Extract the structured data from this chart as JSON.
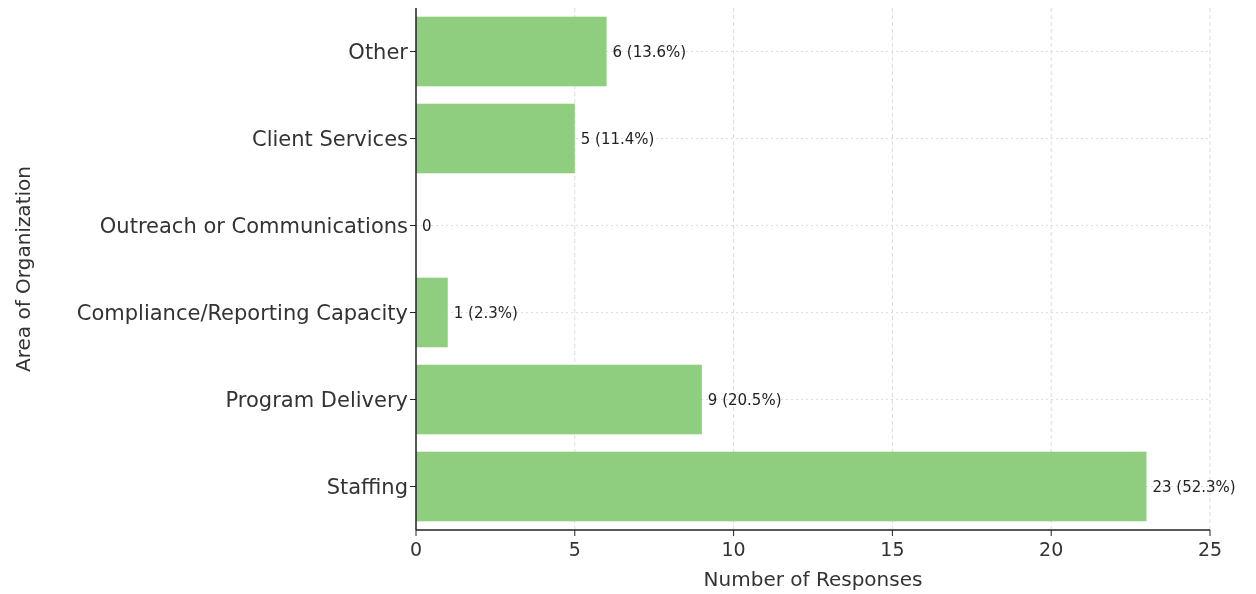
{
  "chart_data": {
    "type": "bar",
    "orientation": "horizontal",
    "xlabel": "Number of Responses",
    "ylabel": "Area of Organization",
    "categories": [
      "Other",
      "Client Services",
      "Outreach or Communications",
      "Compliance/Reporting Capacity",
      "Program Delivery",
      "Staffing"
    ],
    "values": [
      6,
      5,
      0,
      1,
      9,
      23
    ],
    "value_labels": [
      "6 (13.6%)",
      "5 (11.4%)",
      "0",
      "1 (2.3%)",
      "9 (20.5%)",
      "23 (52.3%)"
    ],
    "color": "#8fce7f",
    "xlim": [
      0,
      25
    ],
    "xticks": [
      0,
      5,
      10,
      15,
      20,
      25
    ],
    "grid": true
  }
}
